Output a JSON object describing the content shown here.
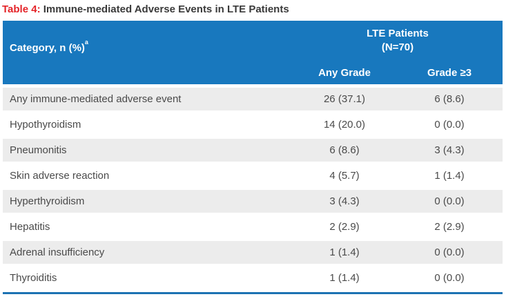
{
  "title": {
    "label": "Table 4:",
    "text": "Immune-mediated Adverse Events in LTE Patients"
  },
  "table": {
    "category_header": "Category, n (%)",
    "category_header_superscript": "a",
    "group_header_line1": "LTE Patients",
    "group_header_line2": "(N=70)",
    "column_headers": [
      "Any Grade",
      "Grade ≥3"
    ],
    "rows": [
      {
        "category": "Any immune-mediated adverse event",
        "any_grade": "26 (37.1)",
        "grade_ge3": "6 (8.6)"
      },
      {
        "category": "Hypothyroidism",
        "any_grade": "14 (20.0)",
        "grade_ge3": "0 (0.0)"
      },
      {
        "category": "Pneumonitis",
        "any_grade": "6 (8.6)",
        "grade_ge3": "3 (4.3)"
      },
      {
        "category": "Skin adverse reaction",
        "any_grade": "4 (5.7)",
        "grade_ge3": "1 (1.4)"
      },
      {
        "category": "Hyperthyroidism",
        "any_grade": "3 (4.3)",
        "grade_ge3": "0 (0.0)"
      },
      {
        "category": "Hepatitis",
        "any_grade": "2 (2.9)",
        "grade_ge3": "2 (2.9)"
      },
      {
        "category": "Adrenal insufficiency",
        "any_grade": "1 (1.4)",
        "grade_ge3": "0 (0.0)"
      },
      {
        "category": "Thyroiditis",
        "any_grade": "1 (1.4)",
        "grade_ge3": "0 (0.0)"
      }
    ]
  },
  "colors": {
    "header_blue": "#1878BE",
    "title_red": "#E42328",
    "row_stripe": "#ECECEC",
    "body_text": "#4A4A4A",
    "bottom_border": "#1C72B2",
    "title_text": "#3A3A3A"
  },
  "chart_data": {
    "type": "table",
    "title": "Table 4: Immune-mediated Adverse Events in LTE Patients",
    "columns": [
      "Category, n (%)",
      "Any Grade (LTE Patients N=70)",
      "Grade ≥3 (LTE Patients N=70)"
    ],
    "rows": [
      [
        "Any immune-mediated adverse event",
        "26 (37.1)",
        "6 (8.6)"
      ],
      [
        "Hypothyroidism",
        "14 (20.0)",
        "0 (0.0)"
      ],
      [
        "Pneumonitis",
        "6 (8.6)",
        "3 (4.3)"
      ],
      [
        "Skin adverse reaction",
        "4 (5.7)",
        "1 (1.4)"
      ],
      [
        "Hyperthyroidism",
        "3 (4.3)",
        "0 (0.0)"
      ],
      [
        "Hepatitis",
        "2 (2.9)",
        "2 (2.9)"
      ],
      [
        "Adrenal insufficiency",
        "1 (1.4)",
        "0 (0.0)"
      ],
      [
        "Thyroiditis",
        "1 (1.4)",
        "0 (0.0)"
      ]
    ]
  }
}
